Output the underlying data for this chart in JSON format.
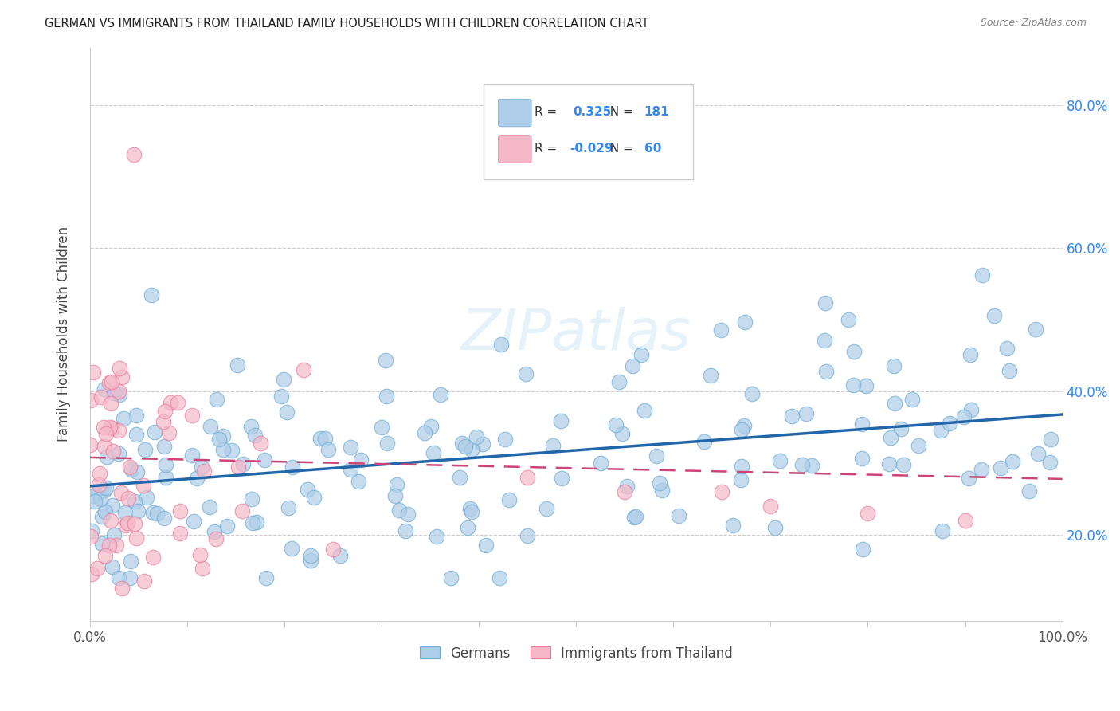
{
  "title": "GERMAN VS IMMIGRANTS FROM THAILAND FAMILY HOUSEHOLDS WITH CHILDREN CORRELATION CHART",
  "source": "Source: ZipAtlas.com",
  "ylabel": "Family Households with Children",
  "xlim": [
    0.0,
    1.0
  ],
  "ylim": [
    0.08,
    0.88
  ],
  "ytick_positions": [
    0.2,
    0.4,
    0.6,
    0.8
  ],
  "ytick_labels": [
    "20.0%",
    "40.0%",
    "60.0%",
    "80.0%"
  ],
  "german_color": "#aecde8",
  "german_edge_color": "#6aabd2",
  "thailand_color": "#f5b8c8",
  "thailand_edge_color": "#e87a9a",
  "german_line_color": "#2266aa",
  "thailand_line_color": "#cc4477",
  "legend_german_label": "Germans",
  "legend_thailand_label": "Immigrants from Thailand",
  "r_german": 0.325,
  "n_german": 181,
  "r_thailand": -0.029,
  "n_thailand": 60,
  "german_line_x0": 0.0,
  "german_line_y0": 0.268,
  "german_line_x1": 1.0,
  "german_line_y1": 0.368,
  "thailand_line_x0": 0.0,
  "thailand_line_y0": 0.308,
  "thailand_line_x1": 1.0,
  "thailand_line_y1": 0.278
}
